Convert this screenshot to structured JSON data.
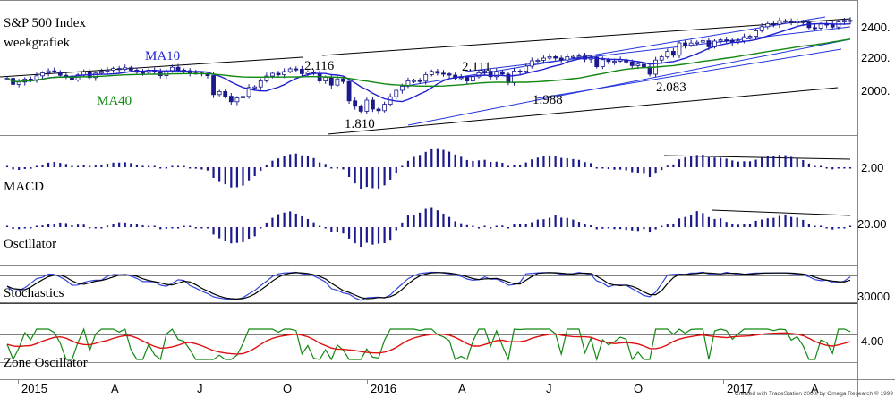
{
  "chart_data": {
    "type": "candlestick",
    "title": "S&P 500 Index",
    "subtitle": "weekgrafiek",
    "x_ticks": [
      "2015",
      "A",
      "J",
      "O",
      "2016",
      "A",
      "J",
      "O",
      "2017",
      "A"
    ],
    "y_ticks": [
      "2400.",
      "2200.",
      "2000."
    ],
    "ylim": [
      1760,
      2460
    ],
    "moving_averages": [
      {
        "name": "MA10",
        "color": "#2020d0"
      },
      {
        "name": "MA40",
        "color": "#118811"
      }
    ],
    "weekly_close": [
      2062,
      2028,
      2041,
      2058,
      2050,
      2076,
      2092,
      2104,
      2098,
      2079,
      2074,
      2053,
      2081,
      2098,
      2066,
      2091,
      2102,
      2108,
      2117,
      2112,
      2121,
      2108,
      2096,
      2095,
      2108,
      2099,
      2077,
      2103,
      2124,
      2108,
      2105,
      2092,
      2092,
      2086,
      2077,
      1971,
      1988,
      1962,
      1931,
      1952,
      1961,
      2011,
      2014,
      2048,
      2075,
      2090,
      2082,
      2100,
      2115,
      2113,
      2088,
      2097,
      2089,
      2047,
      2068,
      2024,
      2059,
      2044,
      1936,
      1906,
      1878,
      1940,
      1890,
      1881,
      1917,
      1959,
      1995,
      2018,
      2048,
      2050,
      2046,
      2083,
      2101,
      2091,
      2087,
      2080,
      2063,
      2067,
      2047,
      2071,
      2093,
      2102,
      2071,
      2099,
      2085,
      2037,
      2103,
      2102,
      2130,
      2160,
      2163,
      2175,
      2183,
      2175,
      2164,
      2183,
      2184,
      2187,
      2169,
      2180,
      2127,
      2166,
      2156,
      2158,
      2166,
      2153,
      2133,
      2141,
      2126,
      2085,
      2164,
      2182,
      2213,
      2191,
      2260,
      2247,
      2259,
      2264,
      2272,
      2238,
      2270,
      2277,
      2275,
      2264,
      2271,
      2294,
      2297,
      2328,
      2351,
      2368,
      2364,
      2384,
      2383,
      2372,
      2379,
      2373,
      2346,
      2343,
      2366,
      2363,
      2349,
      2377,
      2386,
      2383
    ],
    "annotations": [
      "2.116",
      "2.111",
      "1.810",
      "1.988",
      "2.083"
    ],
    "panels": [
      {
        "name": "MACD",
        "y_tick": "2.00",
        "type": "histogram"
      },
      {
        "name": "Oscillator",
        "y_tick": "20.00",
        "type": "histogram"
      },
      {
        "name": "Stochastics",
        "y_tick": "30000",
        "type": "lines"
      },
      {
        "name": "Zone Oscillator",
        "y_tick": "4.00",
        "type": "lines"
      }
    ]
  },
  "credit": "Created with TradeStation 2000i by Omega Research © 1999",
  "colors": {
    "candle": "#1a1a8c",
    "ma10": "#2020d0",
    "ma40": "#118811",
    "channel": "#2233dd",
    "trendline": "#000000",
    "histogram": "#1a1a8c",
    "stoch_k": "#3344dd",
    "stoch_d": "#000000",
    "zone_fast": "#118811",
    "zone_slow": "#dd1111"
  }
}
